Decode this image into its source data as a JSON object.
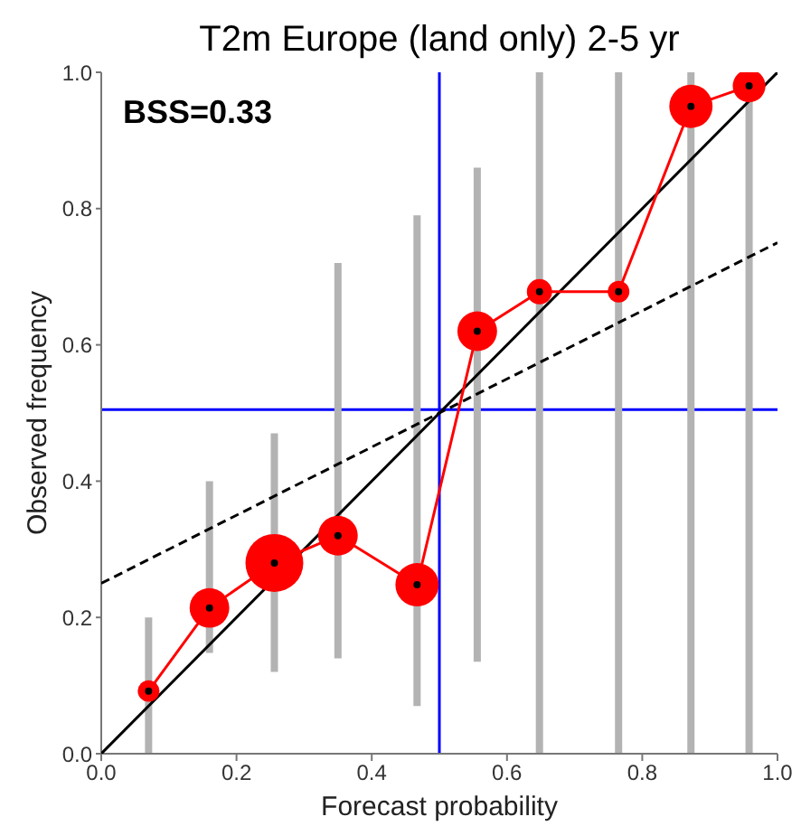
{
  "chart_data": {
    "type": "line",
    "title": "T2m Europe (land only) 2-5 yr",
    "xlabel": "Forecast probability",
    "ylabel": "Observed frequency",
    "annotations": [
      "BSS=0.33"
    ],
    "series": [
      {
        "color": "#000000",
        "x": [
          0,
          1
        ],
        "values": [
          0,
          1
        ],
        "marker": "none",
        "line_style": "solid"
      },
      {
        "color": "#000000",
        "x": [
          0,
          1
        ],
        "values": [
          0.25,
          0.75
        ],
        "marker": "none",
        "line_style": "dashed"
      },
      {
        "type": "line",
        "color": "#ff0000",
        "marker": "circle",
        "line_style": "solid",
        "x": [
          0.07,
          0.16,
          0.256,
          0.35,
          0.467,
          0.556,
          0.648,
          0.765,
          0.872,
          0.958
        ],
        "values": [
          0.092,
          0.214,
          0.28,
          0.32,
          0.248,
          0.62,
          0.678,
          0.678,
          0.95,
          0.98
        ]
      },
      {
        "type": "bubble",
        "color": "#ff0000",
        "marker": "circle",
        "x": [
          0.07,
          0.16,
          0.256,
          0.35,
          0.467,
          0.556,
          0.648,
          0.765,
          0.872,
          0.958
        ],
        "values": [
          0.092,
          0.214,
          0.28,
          0.32,
          0.248,
          0.62,
          0.678,
          0.678,
          0.95,
          0.98
        ],
        "sizes": [
          0.14,
          0.47,
          1,
          0.47,
          0.56,
          0.47,
          0.19,
          0.14,
          0.56,
          0.32
        ],
        "errors": [
          [
            0,
            0.2
          ],
          [
            0.148,
            0.4
          ],
          [
            0.12,
            0.47
          ],
          [
            0.14,
            0.72
          ],
          [
            0.07,
            0.79
          ],
          [
            0.135,
            0.86
          ],
          [
            0,
            1
          ],
          [
            0,
            1
          ],
          [
            0,
            1
          ],
          [
            0,
            1
          ]
        ]
      }
    ],
    "ref_lines": [
      {
        "axis": "x",
        "value": 0.5,
        "color": "#0000ff"
      },
      {
        "axis": "y",
        "value": 0.505,
        "color": "#0000ff"
      }
    ],
    "xlim": [
      0,
      1
    ],
    "ylim": [
      0,
      1
    ],
    "xticks": [
      {
        "value": 0,
        "label": "0.0"
      },
      {
        "value": 0.2,
        "label": "0.2"
      },
      {
        "value": 0.4,
        "label": "0.4"
      },
      {
        "value": 0.6,
        "label": "0.6"
      },
      {
        "value": 0.8,
        "label": "0.8"
      },
      {
        "value": 1,
        "label": "1.0"
      }
    ],
    "yticks": [
      {
        "value": 0,
        "label": "0.0"
      },
      {
        "value": 0.2,
        "label": "0.2"
      },
      {
        "value": 0.4,
        "label": "0.4"
      },
      {
        "value": 0.6,
        "label": "0.6"
      },
      {
        "value": 0.8,
        "label": "0.8"
      },
      {
        "value": 1,
        "label": "1.0"
      }
    ],
    "grid": false,
    "legend": false
  }
}
